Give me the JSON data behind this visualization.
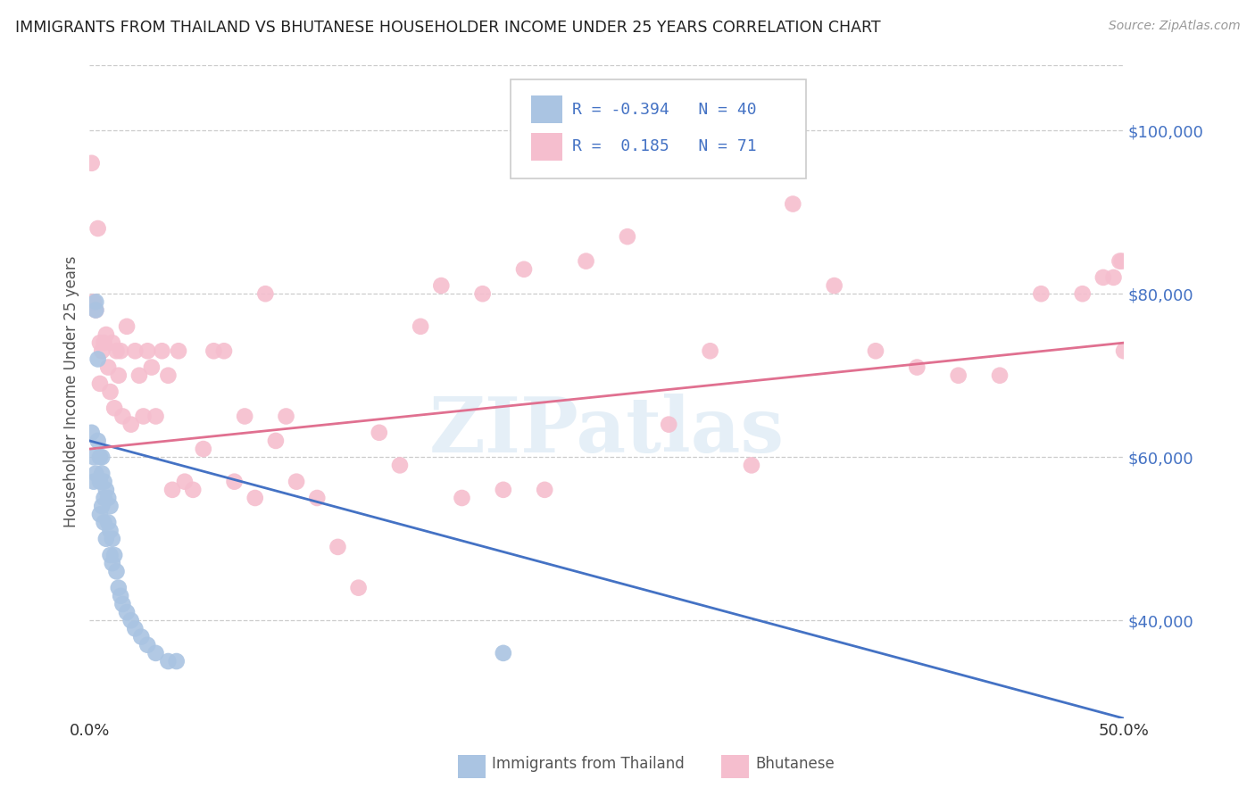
{
  "title": "IMMIGRANTS FROM THAILAND VS BHUTANESE HOUSEHOLDER INCOME UNDER 25 YEARS CORRELATION CHART",
  "source": "Source: ZipAtlas.com",
  "ylabel": "Householder Income Under 25 years",
  "xlim": [
    0.0,
    0.5
  ],
  "ylim": [
    28000,
    108000
  ],
  "yticks": [
    40000,
    60000,
    80000,
    100000
  ],
  "ytick_labels": [
    "$40,000",
    "$60,000",
    "$80,000",
    "$100,000"
  ],
  "blue_color": "#aac4e2",
  "pink_color": "#f5bece",
  "blue_line_color": "#4472c4",
  "pink_line_color": "#e07090",
  "watermark": "ZIPatlas",
  "thailand_x": [
    0.001,
    0.002,
    0.002,
    0.003,
    0.003,
    0.003,
    0.004,
    0.004,
    0.005,
    0.005,
    0.005,
    0.006,
    0.006,
    0.006,
    0.007,
    0.007,
    0.007,
    0.008,
    0.008,
    0.009,
    0.009,
    0.01,
    0.01,
    0.01,
    0.011,
    0.011,
    0.012,
    0.013,
    0.014,
    0.015,
    0.016,
    0.018,
    0.02,
    0.022,
    0.025,
    0.028,
    0.032,
    0.038,
    0.042,
    0.2
  ],
  "thailand_y": [
    63000,
    60000,
    57000,
    79000,
    78000,
    58000,
    72000,
    62000,
    60000,
    57000,
    53000,
    60000,
    58000,
    54000,
    57000,
    55000,
    52000,
    56000,
    50000,
    55000,
    52000,
    54000,
    51000,
    48000,
    50000,
    47000,
    48000,
    46000,
    44000,
    43000,
    42000,
    41000,
    40000,
    39000,
    38000,
    37000,
    36000,
    35000,
    35000,
    36000
  ],
  "bhutan_x": [
    0.001,
    0.002,
    0.003,
    0.004,
    0.005,
    0.005,
    0.006,
    0.007,
    0.008,
    0.009,
    0.01,
    0.011,
    0.012,
    0.013,
    0.014,
    0.015,
    0.016,
    0.018,
    0.02,
    0.022,
    0.024,
    0.026,
    0.028,
    0.03,
    0.032,
    0.035,
    0.038,
    0.04,
    0.043,
    0.046,
    0.05,
    0.055,
    0.06,
    0.065,
    0.07,
    0.075,
    0.08,
    0.085,
    0.09,
    0.095,
    0.1,
    0.11,
    0.12,
    0.13,
    0.14,
    0.15,
    0.16,
    0.17,
    0.18,
    0.19,
    0.2,
    0.21,
    0.22,
    0.24,
    0.26,
    0.28,
    0.3,
    0.32,
    0.34,
    0.36,
    0.38,
    0.4,
    0.42,
    0.44,
    0.46,
    0.48,
    0.49,
    0.495,
    0.498,
    0.499,
    0.5
  ],
  "bhutan_y": [
    96000,
    79000,
    78000,
    88000,
    74000,
    69000,
    73000,
    74000,
    75000,
    71000,
    68000,
    74000,
    66000,
    73000,
    70000,
    73000,
    65000,
    76000,
    64000,
    73000,
    70000,
    65000,
    73000,
    71000,
    65000,
    73000,
    70000,
    56000,
    73000,
    57000,
    56000,
    61000,
    73000,
    73000,
    57000,
    65000,
    55000,
    80000,
    62000,
    65000,
    57000,
    55000,
    49000,
    44000,
    63000,
    59000,
    76000,
    81000,
    55000,
    80000,
    56000,
    83000,
    56000,
    84000,
    87000,
    64000,
    73000,
    59000,
    91000,
    81000,
    73000,
    71000,
    70000,
    70000,
    80000,
    80000,
    82000,
    82000,
    84000,
    84000,
    73000
  ]
}
